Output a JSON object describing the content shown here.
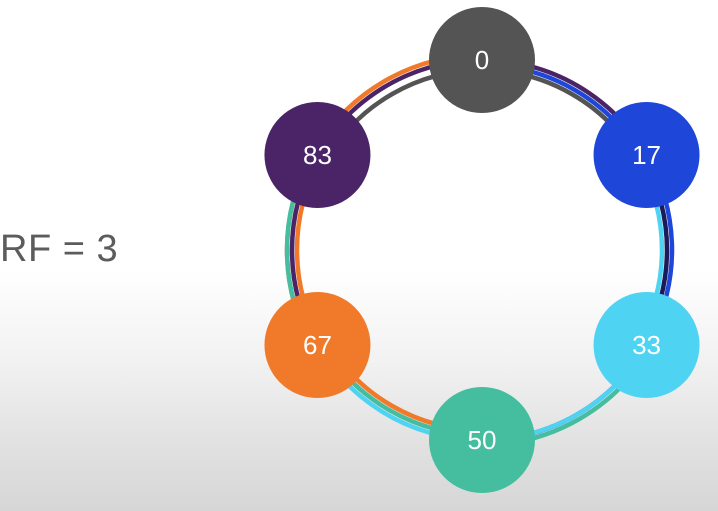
{
  "diagram": {
    "replication_label": "RF = 3",
    "nodes": [
      {
        "label": "0",
        "color": "#545454"
      },
      {
        "label": "17",
        "color": "#1e46d9"
      },
      {
        "label": "33",
        "color": "#4fd3f2"
      },
      {
        "label": "50",
        "color": "#45bea0"
      },
      {
        "label": "67",
        "color": "#f07a2a"
      },
      {
        "label": "83",
        "color": "#4a2466"
      }
    ],
    "ring_colors": {
      "gray": "#545454",
      "blue": "#1e46d9",
      "navy": "#1b1b5a",
      "cyan": "#4fd3f2",
      "teal": "#45bea0",
      "orange": "#f07a2a",
      "purple": "#4a2466"
    }
  }
}
